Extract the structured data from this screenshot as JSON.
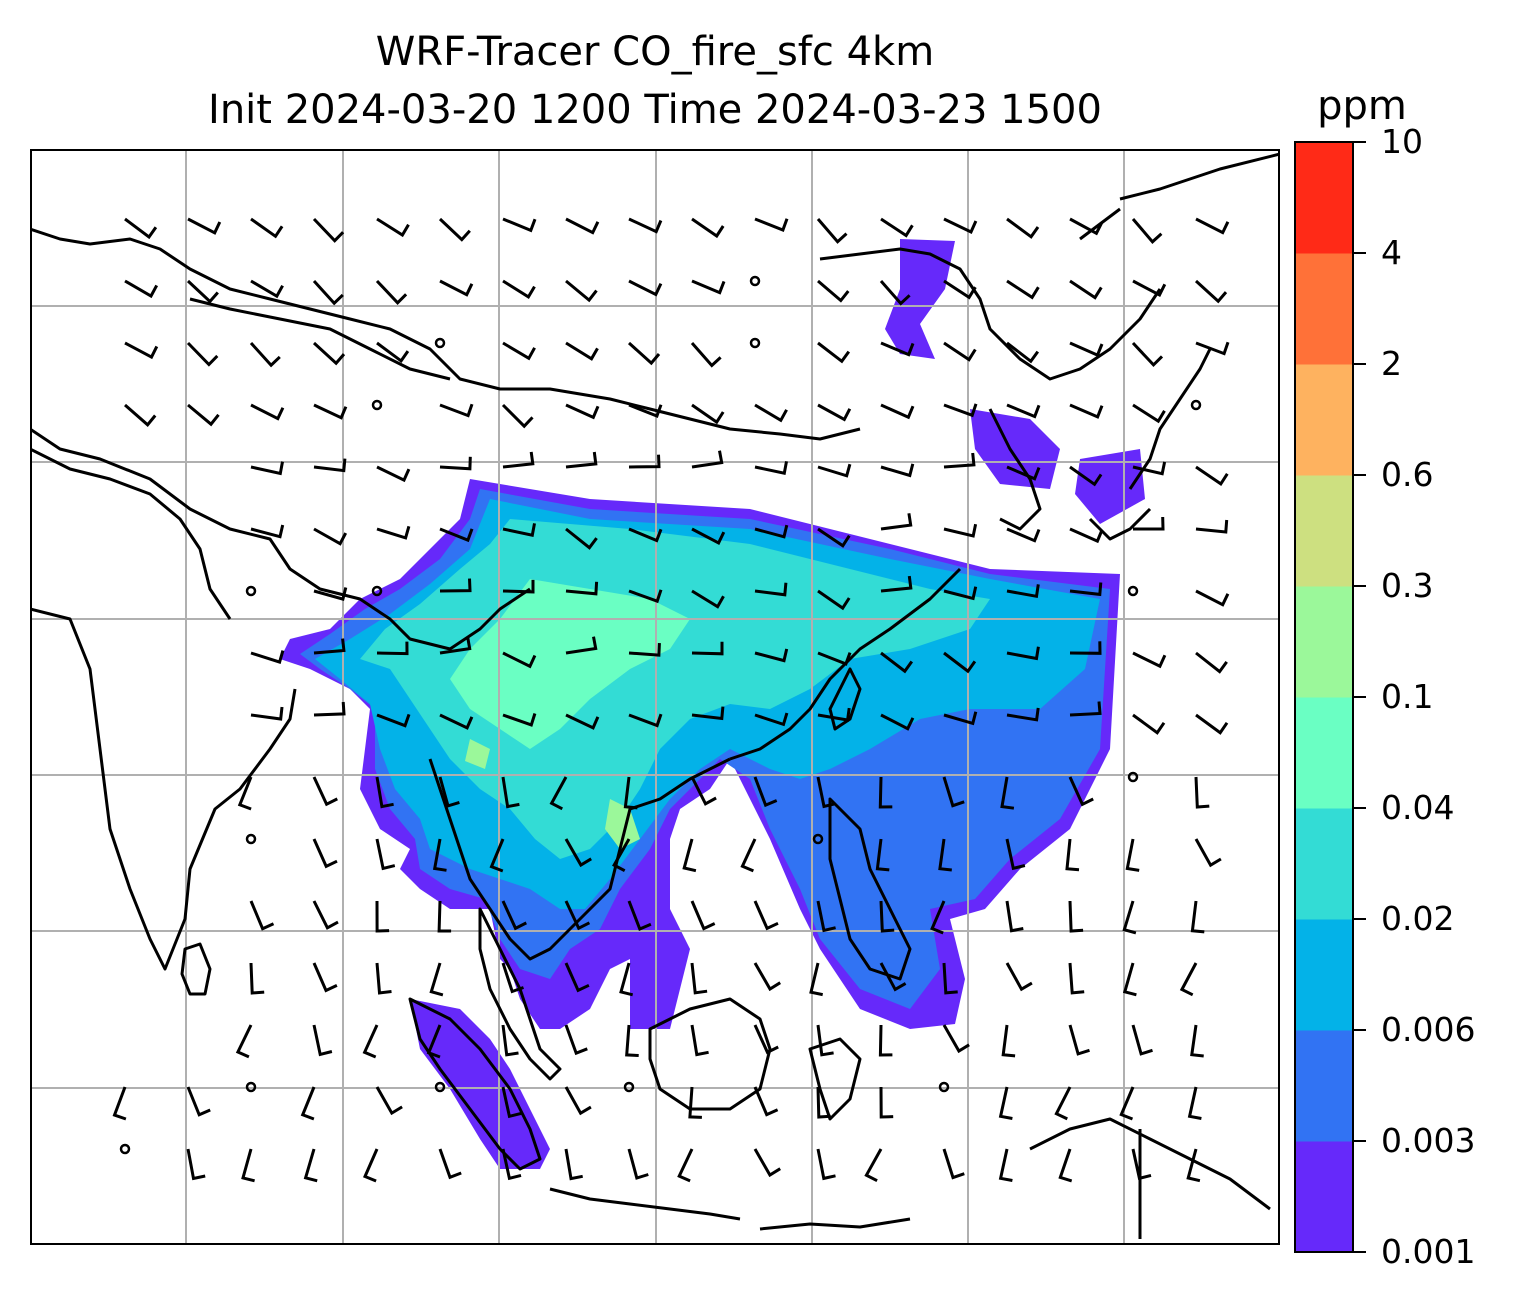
{
  "title": {
    "line1": "WRF-Tracer CO_fire_sfc 4km",
    "line2": "Init 2024-03-20 1200 Time 2024-03-23 1500"
  },
  "colorbar": {
    "unit": "ppm",
    "levels": [
      "0.001",
      "0.003",
      "0.006",
      "0.02",
      "0.04",
      "0.1",
      "0.3",
      "0.6",
      "2",
      "4",
      "10"
    ],
    "colors": [
      "#6629fa",
      "#3173f3",
      "#03b2e8",
      "#33dcd5",
      "#6affc3",
      "#9bf89a",
      "#cde080",
      "#feb25f",
      "#ff7138",
      "#ff2a17"
    ]
  },
  "map": {
    "gridlines": true,
    "grid_color": "#b0b0b0",
    "coastline_color": "#000000",
    "wind_barb_color": "#000000"
  }
}
